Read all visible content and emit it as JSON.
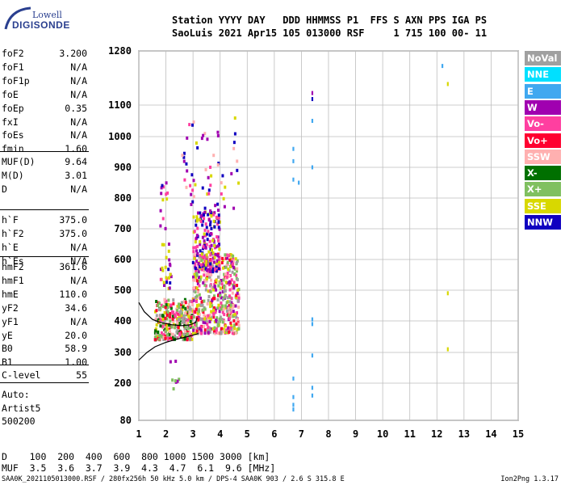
{
  "logo": {
    "line1": "Lowell",
    "line2": "DIGISONDE"
  },
  "header": {
    "line1": "Station YYYY DAY   DDD HHMMSS P1  FFS S AXN PPS IGA PS",
    "line2": "SaoLuis 2021 Apr15 105 013000 RSF     1 715 100 00- 11"
  },
  "params": {
    "group1": [
      {
        "label": "foF2",
        "value": "3.200"
      },
      {
        "label": "foF1",
        "value": "N/A"
      },
      {
        "label": "foF1p",
        "value": "N/A"
      },
      {
        "label": "foE",
        "value": "N/A"
      },
      {
        "label": "foEp",
        "value": "0.35"
      },
      {
        "label": "fxI",
        "value": "N/A"
      },
      {
        "label": "foEs",
        "value": "N/A"
      },
      {
        "label": "fmin",
        "value": "1.60"
      }
    ],
    "group2": [
      {
        "label": "MUF(D)",
        "value": "9.64"
      },
      {
        "label": "M(D)",
        "value": "3.01"
      },
      {
        "label": "D",
        "value": "N/A"
      }
    ],
    "group3": [
      {
        "label": "h`F",
        "value": "375.0"
      },
      {
        "label": "h`F2",
        "value": "375.0"
      },
      {
        "label": "h`E",
        "value": "N/A"
      },
      {
        "label": "h`Es",
        "value": "N/A"
      }
    ],
    "group4": [
      {
        "label": "hmF2",
        "value": "361.6"
      },
      {
        "label": "hmF1",
        "value": "N/A"
      },
      {
        "label": "hmE",
        "value": "110.0"
      },
      {
        "label": "yF2",
        "value": "34.6"
      },
      {
        "label": "yF1",
        "value": "N/A"
      },
      {
        "label": "yE",
        "value": "20.0"
      },
      {
        "label": "B0",
        "value": "58.9"
      },
      {
        "label": "B1",
        "value": "1.00"
      }
    ],
    "group5": [
      {
        "label": "C-level",
        "value": "55"
      }
    ],
    "notes": [
      "Auto:",
      "Artist5",
      "500200"
    ]
  },
  "legend": [
    {
      "label": "NoVal",
      "color": "#a0a0a0"
    },
    {
      "label": "NNE",
      "color": "#00e0ff"
    },
    {
      "label": "E",
      "color": "#40a8f0"
    },
    {
      "label": "W",
      "color": "#a000b0"
    },
    {
      "label": "Vo-",
      "color": "#ff3fa0"
    },
    {
      "label": "Vo+",
      "color": "#ff0030"
    },
    {
      "label": "SSW",
      "color": "#ffb0b0"
    },
    {
      "label": "X-",
      "color": "#007000"
    },
    {
      "label": "X+",
      "color": "#80c060"
    },
    {
      "label": "SSE",
      "color": "#d8d800"
    },
    {
      "label": "NNW",
      "color": "#1000c0"
    }
  ],
  "bottom": {
    "row1": "D    100  200  400  600  800 1000 1500 3000 [km]",
    "row2": "MUF  3.5  3.6  3.7  3.9  4.3  4.7  6.1  9.6 [MHz]"
  },
  "footer": {
    "left": "SAA0K_2021105013000.RSF / 280fx256h 50 kHz 5.0 km / DPS-4 SAA0K 903 / 2.6 S 315.8 E",
    "right": "Ion2Png 1.3.17"
  },
  "chart_data": {
    "type": "scatter",
    "title": "",
    "xlabel": "",
    "ylabel": "",
    "xlim": [
      1,
      15
    ],
    "ylim": [
      80,
      1280
    ],
    "x_ticks": [
      1,
      2,
      3,
      4,
      5,
      6,
      7,
      8,
      9,
      10,
      11,
      12,
      13,
      14,
      15
    ],
    "y_ticks": [
      80,
      200,
      300,
      400,
      500,
      600,
      700,
      800,
      900,
      1000,
      1100,
      1280
    ],
    "y_scale": "piecewise",
    "grid": true,
    "trace_curve": {
      "name": "",
      "x": [
        1.0,
        1.3,
        1.6,
        2.0,
        2.4,
        2.8,
        3.0,
        3.2
      ],
      "y": [
        275,
        300,
        318,
        332,
        342,
        350,
        355,
        360
      ]
    },
    "trace_curve_o": {
      "x": [
        1.0,
        1.2,
        1.5,
        1.8,
        2.2,
        2.6,
        2.9,
        3.1,
        3.15
      ],
      "y": [
        460,
        430,
        405,
        395,
        388,
        385,
        388,
        395,
        410
      ]
    },
    "echo_clusters": [
      {
        "x_range": [
          1.6,
          3.0
        ],
        "y_range": [
          340,
          470
        ],
        "colors": [
          "Vo+",
          "X+",
          "SSE",
          "X-",
          "Vo-",
          "SSW",
          "NoVal"
        ],
        "density": 320
      },
      {
        "x_range": [
          3.0,
          4.7
        ],
        "y_range": [
          360,
          620
        ],
        "colors": [
          "Vo-",
          "SSE",
          "W",
          "X+",
          "Vo+",
          "SSW",
          "NoVal"
        ],
        "density": 520
      },
      {
        "x_range": [
          3.0,
          4.0
        ],
        "y_range": [
          560,
          760
        ],
        "colors": [
          "W",
          "Vo-",
          "NNW",
          "SSE"
        ],
        "density": 170
      },
      {
        "x_range": [
          1.8,
          2.2
        ],
        "y_range": [
          500,
          860
        ],
        "colors": [
          "W",
          "NNW",
          "Vo-",
          "SSE"
        ],
        "density": 40
      },
      {
        "x_range": [
          2.6,
          4.8
        ],
        "y_range": [
          760,
          1060
        ],
        "colors": [
          "SSE",
          "W",
          "Vo-",
          "SSW",
          "NNW"
        ],
        "density": 60
      },
      {
        "x_range": [
          2.0,
          2.5
        ],
        "y_range": [
          180,
          330
        ],
        "colors": [
          "W",
          "Vo-",
          "X+"
        ],
        "density": 8
      }
    ],
    "isolated_points": [
      {
        "x": 6.7,
        "y": 960,
        "color": "E"
      },
      {
        "x": 6.7,
        "y": 920,
        "color": "E"
      },
      {
        "x": 6.7,
        "y": 860,
        "color": "E"
      },
      {
        "x": 6.7,
        "y": 215,
        "color": "E"
      },
      {
        "x": 6.7,
        "y": 155,
        "color": "E"
      },
      {
        "x": 6.7,
        "y": 130,
        "color": "E"
      },
      {
        "x": 6.7,
        "y": 115,
        "color": "E"
      },
      {
        "x": 6.9,
        "y": 850,
        "color": "E"
      },
      {
        "x": 7.4,
        "y": 1140,
        "color": "W"
      },
      {
        "x": 7.4,
        "y": 1120,
        "color": "NNW"
      },
      {
        "x": 7.4,
        "y": 1050,
        "color": "E"
      },
      {
        "x": 7.4,
        "y": 900,
        "color": "E"
      },
      {
        "x": 7.4,
        "y": 405,
        "color": "E"
      },
      {
        "x": 7.4,
        "y": 390,
        "color": "E"
      },
      {
        "x": 7.4,
        "y": 290,
        "color": "E"
      },
      {
        "x": 7.4,
        "y": 185,
        "color": "E"
      },
      {
        "x": 7.4,
        "y": 160,
        "color": "E"
      },
      {
        "x": 12.2,
        "y": 1230,
        "color": "E"
      },
      {
        "x": 12.4,
        "y": 1170,
        "color": "SSE"
      },
      {
        "x": 12.4,
        "y": 490,
        "color": "SSE"
      },
      {
        "x": 12.4,
        "y": 310,
        "color": "SSE"
      }
    ]
  }
}
